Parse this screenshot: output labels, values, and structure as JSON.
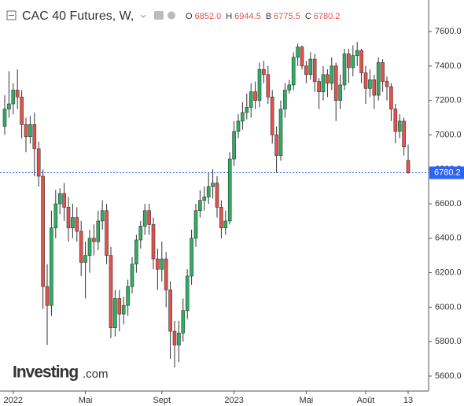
{
  "chart_data": {
    "type": "candlestick",
    "title": "CAC 40 Futures, W,",
    "ohlc_legend": [
      {
        "label": "O",
        "value": "6852.0"
      },
      {
        "label": "H",
        "value": "6944.5"
      },
      {
        "label": "B",
        "value": "6775.5"
      },
      {
        "label": "C",
        "value": "6780.2"
      }
    ],
    "watermark": {
      "brand": "Investing",
      "suffix": ".com"
    },
    "up_color": "#2eaf62",
    "down_color": "#e4524d",
    "ylim": [
      5513,
      7783
    ],
    "yticks": [
      {
        "value": 5600,
        "label": "5600.0"
      },
      {
        "value": 5800,
        "label": "5800.0"
      },
      {
        "value": 6000,
        "label": "6000.0"
      },
      {
        "value": 6200,
        "label": "6200.0"
      },
      {
        "value": 6400,
        "label": "6400.0"
      },
      {
        "value": 6600,
        "label": "6600.0"
      },
      {
        "value": 6800,
        "label": "6800.0"
      },
      {
        "value": 7000,
        "label": "7000.0"
      },
      {
        "value": 7200,
        "label": "7200.0"
      },
      {
        "value": 7400,
        "label": "7400.0"
      },
      {
        "value": 7600,
        "label": "7600.0"
      }
    ],
    "grid": false,
    "last_price": 6780.2,
    "categories": [
      null,
      null,
      "2022",
      null,
      null,
      null,
      null,
      null,
      null,
      null,
      null,
      null,
      null,
      null,
      null,
      null,
      null,
      null,
      null,
      "Mai",
      null,
      null,
      null,
      null,
      null,
      null,
      null,
      null,
      null,
      null,
      null,
      null,
      null,
      null,
      null,
      null,
      null,
      "Sept",
      null,
      null,
      null,
      null,
      null,
      null,
      null,
      null,
      null,
      null,
      null,
      null,
      null,
      null,
      null,
      null,
      "2023",
      null,
      null,
      null,
      null,
      null,
      null,
      null,
      null,
      null,
      null,
      null,
      null,
      null,
      null,
      null,
      null,
      "Mai",
      null,
      null,
      null,
      null,
      null,
      null,
      null,
      null,
      null,
      null,
      null,
      null,
      null,
      "Août",
      null,
      null,
      null,
      null,
      null,
      null,
      null,
      null,
      null,
      "13"
    ],
    "ohlc": [
      [
        7050,
        7230,
        7000,
        7150
      ],
      [
        7150,
        7370,
        7100,
        7180
      ],
      [
        7180,
        7300,
        7120,
        7260
      ],
      [
        7260,
        7380,
        7150,
        7220
      ],
      [
        7220,
        7260,
        6980,
        7060
      ],
      [
        7060,
        7100,
        6900,
        6990
      ],
      [
        6990,
        7110,
        6950,
        7060
      ],
      [
        7060,
        7130,
        6760,
        6920
      ],
      [
        6920,
        6960,
        6700,
        6760
      ],
      [
        6760,
        6800,
        5990,
        6120
      ],
      [
        6120,
        6250,
        5780,
        6010
      ],
      [
        6010,
        6560,
        5950,
        6460
      ],
      [
        6460,
        6680,
        6400,
        6600
      ],
      [
        6600,
        6690,
        6540,
        6660
      ],
      [
        6660,
        6720,
        6500,
        6580
      ],
      [
        6580,
        6640,
        6380,
        6460
      ],
      [
        6460,
        6600,
        6400,
        6520
      ],
      [
        6520,
        6580,
        6380,
        6440
      ],
      [
        6440,
        6500,
        6180,
        6260
      ],
      [
        6260,
        6380,
        6050,
        6300
      ],
      [
        6300,
        6450,
        6200,
        6400
      ],
      [
        6400,
        6480,
        6300,
        6380
      ],
      [
        6380,
        6560,
        6330,
        6500
      ],
      [
        6500,
        6620,
        6450,
        6560
      ],
      [
        6560,
        6600,
        6250,
        6300
      ],
      [
        6300,
        6350,
        5820,
        5880
      ],
      [
        5880,
        6100,
        5830,
        6050
      ],
      [
        6050,
        6100,
        5860,
        5960
      ],
      [
        5960,
        6060,
        5900,
        6010
      ],
      [
        6010,
        6160,
        5950,
        6120
      ],
      [
        6120,
        6290,
        6080,
        6250
      ],
      [
        6250,
        6420,
        6200,
        6390
      ],
      [
        6390,
        6500,
        6340,
        6470
      ],
      [
        6470,
        6600,
        6420,
        6560
      ],
      [
        6560,
        6600,
        6420,
        6480
      ],
      [
        6480,
        6520,
        6220,
        6280
      ],
      [
        6280,
        6340,
        6100,
        6220
      ],
      [
        6220,
        6380,
        6150,
        6280
      ],
      [
        6280,
        6320,
        6000,
        6100
      ],
      [
        6100,
        6150,
        5700,
        5860
      ],
      [
        5860,
        5920,
        5650,
        5780
      ],
      [
        5780,
        5920,
        5680,
        5850
      ],
      [
        5850,
        6050,
        5800,
        5980
      ],
      [
        5980,
        6220,
        5930,
        6180
      ],
      [
        6180,
        6450,
        6130,
        6400
      ],
      [
        6400,
        6600,
        6350,
        6560
      ],
      [
        6560,
        6680,
        6520,
        6620
      ],
      [
        6620,
        6700,
        6560,
        6640
      ],
      [
        6640,
        6780,
        6600,
        6700
      ],
      [
        6700,
        6800,
        6630,
        6720
      ],
      [
        6720,
        6760,
        6520,
        6580
      ],
      [
        6580,
        6620,
        6400,
        6460
      ],
      [
        6460,
        6560,
        6420,
        6500
      ],
      [
        6500,
        6900,
        6480,
        6860
      ],
      [
        6860,
        7080,
        6820,
        7020
      ],
      [
        7020,
        7120,
        6980,
        7080
      ],
      [
        7080,
        7190,
        7030,
        7130
      ],
      [
        7130,
        7240,
        7090,
        7160
      ],
      [
        7160,
        7300,
        7100,
        7250
      ],
      [
        7250,
        7310,
        7150,
        7200
      ],
      [
        7200,
        7420,
        7160,
        7380
      ],
      [
        7380,
        7430,
        7300,
        7350
      ],
      [
        7350,
        7400,
        7180,
        7220
      ],
      [
        7220,
        7260,
        6950,
        7000
      ],
      [
        7000,
        7050,
        6780,
        6880
      ],
      [
        6880,
        7200,
        6850,
        7150
      ],
      [
        7150,
        7300,
        7100,
        7260
      ],
      [
        7260,
        7320,
        7240,
        7290
      ],
      [
        7290,
        7480,
        7260,
        7450
      ],
      [
        7450,
        7530,
        7400,
        7510
      ],
      [
        7510,
        7520,
        7380,
        7400
      ],
      [
        7400,
        7430,
        7300,
        7350
      ],
      [
        7350,
        7480,
        7320,
        7440
      ],
      [
        7440,
        7470,
        7250,
        7310
      ],
      [
        7310,
        7330,
        7150,
        7250
      ],
      [
        7250,
        7400,
        7200,
        7350
      ],
      [
        7350,
        7380,
        7220,
        7300
      ],
      [
        7300,
        7450,
        7260,
        7400
      ],
      [
        7400,
        7420,
        7080,
        7200
      ],
      [
        7200,
        7350,
        7150,
        7290
      ],
      [
        7290,
        7500,
        7260,
        7470
      ],
      [
        7470,
        7500,
        7300,
        7390
      ],
      [
        7390,
        7520,
        7340,
        7460
      ],
      [
        7460,
        7540,
        7400,
        7490
      ],
      [
        7490,
        7500,
        7300,
        7360
      ],
      [
        7360,
        7400,
        7180,
        7270
      ],
      [
        7270,
        7380,
        7220,
        7320
      ],
      [
        7320,
        7350,
        7150,
        7230
      ],
      [
        7230,
        7450,
        7200,
        7420
      ],
      [
        7420,
        7440,
        7250,
        7310
      ],
      [
        7310,
        7340,
        7200,
        7280
      ],
      [
        7280,
        7300,
        7080,
        7150
      ],
      [
        7150,
        7180,
        6950,
        7020
      ],
      [
        7020,
        7120,
        6980,
        7080
      ],
      [
        7080,
        7100,
        6880,
        6930
      ],
      [
        6852,
        6944.5,
        6775.5,
        6780.2
      ]
    ]
  }
}
